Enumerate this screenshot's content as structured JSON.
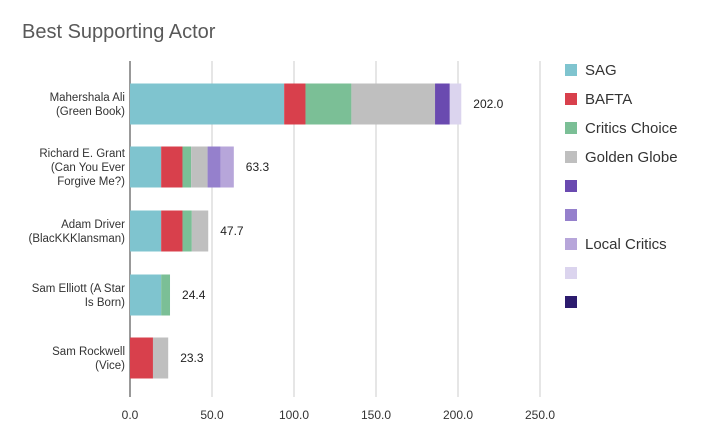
{
  "chart_data": {
    "type": "bar",
    "orientation": "horizontal",
    "stacked": true,
    "title": "Best Supporting Actor",
    "xlim": [
      0,
      250
    ],
    "xticks": [
      "0.0",
      "50.0",
      "100.0",
      "150.0",
      "200.0",
      "250.0"
    ],
    "grid": true,
    "legend_position": "right",
    "categories": [
      [
        "Mahershala Ali",
        "(Green Book)"
      ],
      [
        "Richard E. Grant",
        "(Can You Ever",
        "Forgive Me?)"
      ],
      [
        "Adam Driver",
        "(BlacKKKlansman)"
      ],
      [
        "Sam Elliott (A Star",
        "Is Born)"
      ],
      [
        "Sam Rockwell",
        "(Vice)"
      ]
    ],
    "totals": [
      "202.0",
      "63.3",
      "47.7",
      "24.4",
      "23.3"
    ],
    "series": [
      {
        "name": "SAG",
        "color": "#7fc4cf",
        "values": [
          94,
          19,
          19,
          19,
          0
        ]
      },
      {
        "name": "BAFTA",
        "color": "#d8404c",
        "values": [
          13,
          13,
          13,
          0,
          14
        ]
      },
      {
        "name": "Critics Choice",
        "color": "#7bbf96",
        "values": [
          28,
          5.3,
          5.7,
          5.4,
          0
        ]
      },
      {
        "name": "Golden Globe",
        "color": "#bfbfbf",
        "values": [
          51,
          10,
          10,
          0,
          9.3
        ]
      },
      {
        "name": "",
        "color": "#6a4ab0",
        "values": [
          9,
          0,
          0,
          0,
          0
        ]
      },
      {
        "name": "",
        "color": "#9580cc",
        "values": [
          0,
          8,
          0,
          0,
          0
        ]
      },
      {
        "name": "Local Critics",
        "color": "#b7a6da",
        "values": [
          0,
          8,
          0,
          0,
          0
        ]
      },
      {
        "name": "",
        "color": "#dbd4ee",
        "values": [
          7,
          0,
          0,
          0,
          0
        ]
      },
      {
        "name": "",
        "color": "#2c1b6e",
        "values": [
          0,
          0,
          0,
          0,
          0
        ]
      }
    ]
  }
}
